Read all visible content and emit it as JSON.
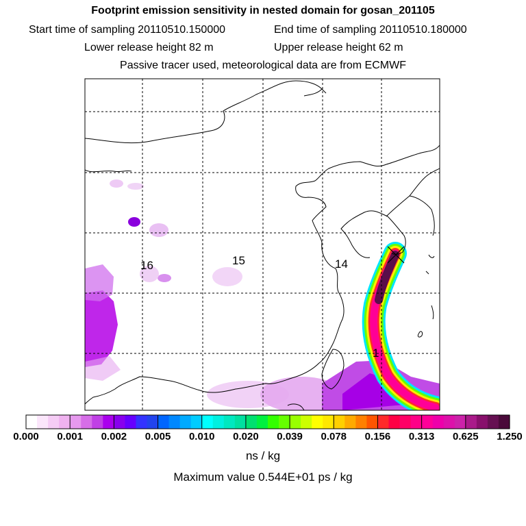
{
  "header": {
    "title": "Footprint emission sensitivity in nested domain for gosan_201105",
    "start_time": "Start time of sampling 20110510.150000",
    "end_time": "End time of sampling 20110510.180000",
    "lower_release": "Lower release height   82 m",
    "upper_release": "Upper release height   62 m",
    "note": "Passive tracer used, meteorological data are from ECMWF"
  },
  "map": {
    "day_labels": [
      "16",
      "15",
      "14",
      "1"
    ],
    "receptor_marker": "x-icon",
    "colors": {
      "coast": "#000000",
      "grid": "#000000",
      "plume_low": "#e0a6ef",
      "plume_mid": "#b400e6",
      "plume_high": "#ff0096",
      "plume_core": "#5a0e4a"
    }
  },
  "colorbar": {
    "ticks": [
      "0.000",
      "0.001",
      "0.002",
      "0.005",
      "0.010",
      "0.020",
      "0.039",
      "0.078",
      "0.156",
      "0.313",
      "0.625",
      "1.250"
    ],
    "colors": [
      [
        "#ffffff",
        "#fbe6fb",
        "#f5ccf5",
        "#efb2ef"
      ],
      [
        "#e699ee",
        "#d66ee8",
        "#c040e6",
        "#aa00ee"
      ],
      [
        "#8800ee",
        "#6600ff",
        "#3333ff",
        "#2244ee"
      ],
      [
        "#0066ff",
        "#0088ff",
        "#00aaff",
        "#00ccff"
      ],
      [
        "#00ffff",
        "#00f0e0",
        "#00e8c0",
        "#00e0a0"
      ],
      [
        "#00e070",
        "#00f040",
        "#33ff00",
        "#66ff00"
      ],
      [
        "#99ff00",
        "#ccff00",
        "#ffff00",
        "#ffe800"
      ],
      [
        "#ffd000",
        "#ffaa00",
        "#ff8000",
        "#ff5500"
      ],
      [
        "#ff2a2a",
        "#ff0044",
        "#ff0066",
        "#ff0088"
      ],
      [
        "#ff0099",
        "#ee00aa",
        "#dd11aa",
        "#cc22aa"
      ],
      [
        "#aa1a8a",
        "#88106c",
        "#661052",
        "#4a0a3a"
      ]
    ],
    "unit": "ns / kg",
    "max_value": "Maximum value  0.544E+01 ps / kg"
  }
}
